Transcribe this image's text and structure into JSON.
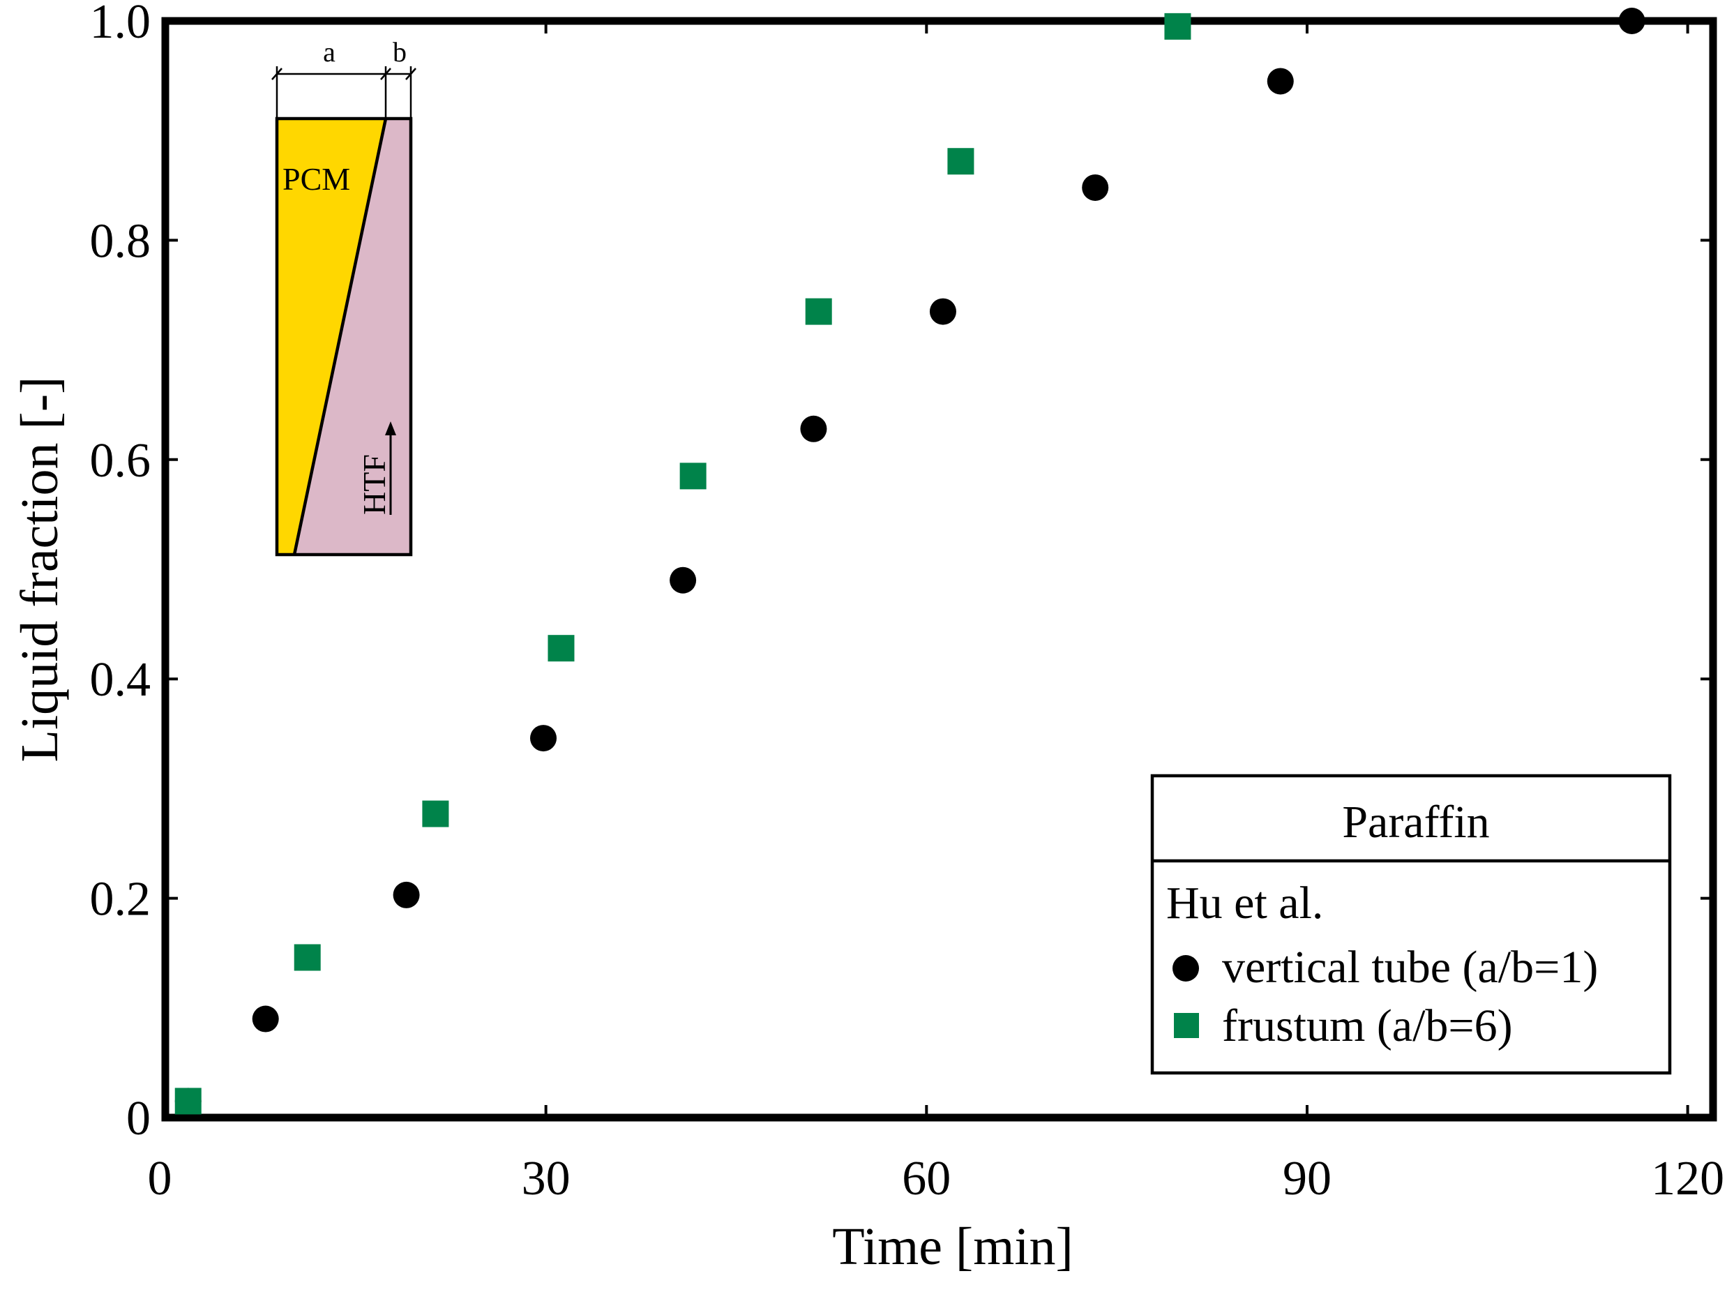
{
  "chart_data": {
    "type": "scatter",
    "title": "",
    "xlabel": "Time [min]",
    "ylabel": "Liquid fraction [-]",
    "xlim": [
      0,
      122
    ],
    "ylim": [
      0,
      1.0
    ],
    "x_ticks": [
      0,
      30,
      60,
      90,
      120
    ],
    "y_ticks": [
      0,
      0.2,
      0.4,
      0.6,
      0.8,
      1.0
    ],
    "x_tick_labels": [
      "0",
      "30",
      "60",
      "90",
      "120"
    ],
    "y_tick_labels": [
      "0",
      "0.2",
      "0.4",
      "0.6",
      "0.8",
      "1.0"
    ],
    "grid": false,
    "legend": {
      "position": "bottom-right",
      "title": "Paraffin",
      "group_label": "Hu et al."
    },
    "series": [
      {
        "name": "vertical tube (a/b=1)",
        "marker": "circle",
        "color": "#000000",
        "x": [
          1.8,
          7.9,
          19.0,
          29.8,
          40.8,
          51.1,
          61.3,
          73.3,
          87.9,
          115.6
        ],
        "y": [
          0.015,
          0.09,
          0.203,
          0.346,
          0.49,
          0.628,
          0.735,
          0.848,
          0.945,
          1.0
        ]
      },
      {
        "name": "frustum (a/b=6)",
        "marker": "square",
        "color": "#00834a",
        "x": [
          1.8,
          11.2,
          21.3,
          31.2,
          41.6,
          51.5,
          62.7,
          79.8
        ],
        "y": [
          0.015,
          0.146,
          0.277,
          0.428,
          0.585,
          0.735,
          0.872,
          0.995
        ]
      }
    ],
    "inset": {
      "labels": {
        "a": "a",
        "b": "b",
        "pcm": "PCM",
        "htf": "HTF"
      },
      "colors": {
        "pcm": "#ffd700",
        "htf_region": "#dcb8c8",
        "outline": "#000000"
      }
    }
  }
}
